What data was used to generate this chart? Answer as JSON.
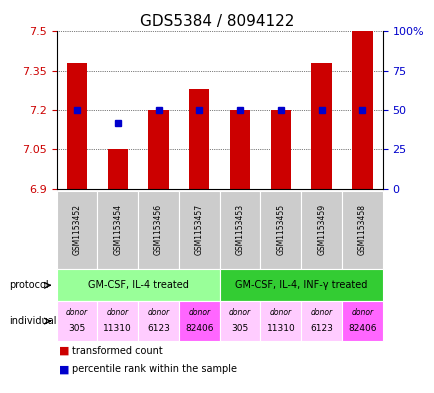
{
  "title": "GDS5384 / 8094122",
  "samples": [
    "GSM1153452",
    "GSM1153454",
    "GSM1153456",
    "GSM1153457",
    "GSM1153453",
    "GSM1153455",
    "GSM1153459",
    "GSM1153458"
  ],
  "transformed_counts": [
    7.38,
    7.05,
    7.2,
    7.28,
    7.2,
    7.2,
    7.38,
    7.5
  ],
  "percentile_ranks": [
    50,
    42,
    50,
    50,
    50,
    50,
    50,
    50
  ],
  "ylim": [
    6.9,
    7.5
  ],
  "yticks": [
    6.9,
    7.05,
    7.2,
    7.35,
    7.5
  ],
  "ytick_labels": [
    "6.9",
    "7.05",
    "7.2",
    "7.35",
    "7.5"
  ],
  "right_yticks": [
    0,
    25,
    50,
    75,
    100
  ],
  "right_ytick_labels": [
    "0",
    "25",
    "50",
    "75",
    "100%"
  ],
  "bar_color": "#cc0000",
  "dot_color": "#0000cc",
  "protocol_labels": [
    "GM-CSF, IL-4 treated",
    "GM-CSF, IL-4, INF-γ treated"
  ],
  "protocol_color_1": "#99ff99",
  "protocol_color_2": "#33cc33",
  "individual_labels": [
    "donor\n305",
    "donor\n11310",
    "donor\n6123",
    "donor\n82406",
    "donor\n305",
    "donor\n11310",
    "donor\n6123",
    "donor\n82406"
  ],
  "individual_colors": [
    "#ffccff",
    "#ffccff",
    "#ffccff",
    "#ff66ff",
    "#ffccff",
    "#ffccff",
    "#ffccff",
    "#ff66ff"
  ],
  "bar_color_legend": "#cc0000",
  "dot_color_legend": "#0000cc",
  "title_fontsize": 11,
  "sample_bg_color": "#cccccc"
}
